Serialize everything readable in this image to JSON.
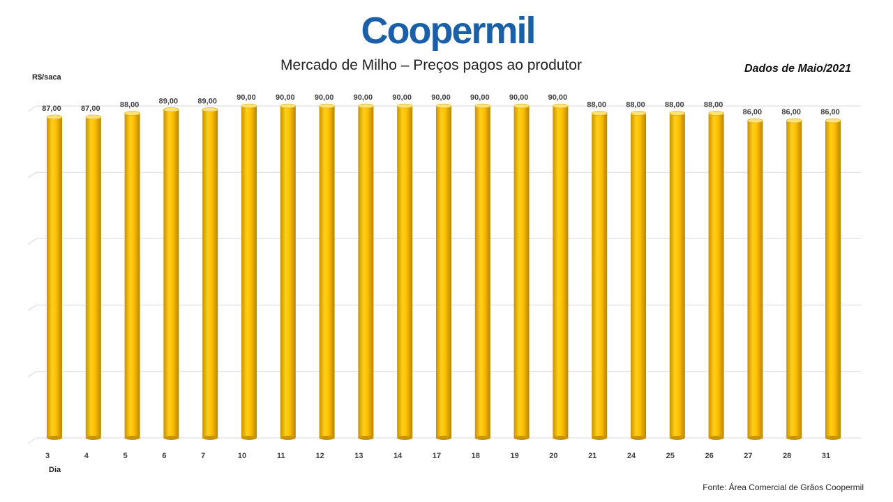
{
  "logo": {
    "text": "Coopermil",
    "color": "#1a5fa8"
  },
  "header": {
    "title": "Mercado de Milho – Preços pagos ao produtor",
    "subtitle": "Dados de Maio/2021",
    "source": "Fonte:  Área Comercial de Grãos Coopermil"
  },
  "chart_data": {
    "type": "bar",
    "title": "Mercado de Milho – Preços pagos ao produtor",
    "subtitle": "Dados de Maio/2021",
    "ylabel": "R$/saca",
    "xlabel": "Dia",
    "categories": [
      "3",
      "4",
      "5",
      "6",
      "7",
      "10",
      "11",
      "12",
      "13",
      "14",
      "17",
      "18",
      "19",
      "20",
      "21",
      "24",
      "25",
      "26",
      "27",
      "28",
      "31"
    ],
    "values": [
      87,
      87,
      88,
      89,
      89,
      90,
      90,
      90,
      90,
      90,
      90,
      90,
      90,
      90,
      88,
      88,
      88,
      88,
      86,
      86,
      86
    ],
    "value_labels": [
      "87,00",
      "87,00",
      "88,00",
      "89,00",
      "89,00",
      "90,00",
      "90,00",
      "90,00",
      "90,00",
      "90,00",
      "90,00",
      "90,00",
      "90,00",
      "90,00",
      "88,00",
      "88,00",
      "88,00",
      "88,00",
      "86,00",
      "86,00",
      "86,00"
    ],
    "bar_color": "#ffc000",
    "grid": true,
    "y_tick_labels": false,
    "legend": "none"
  }
}
